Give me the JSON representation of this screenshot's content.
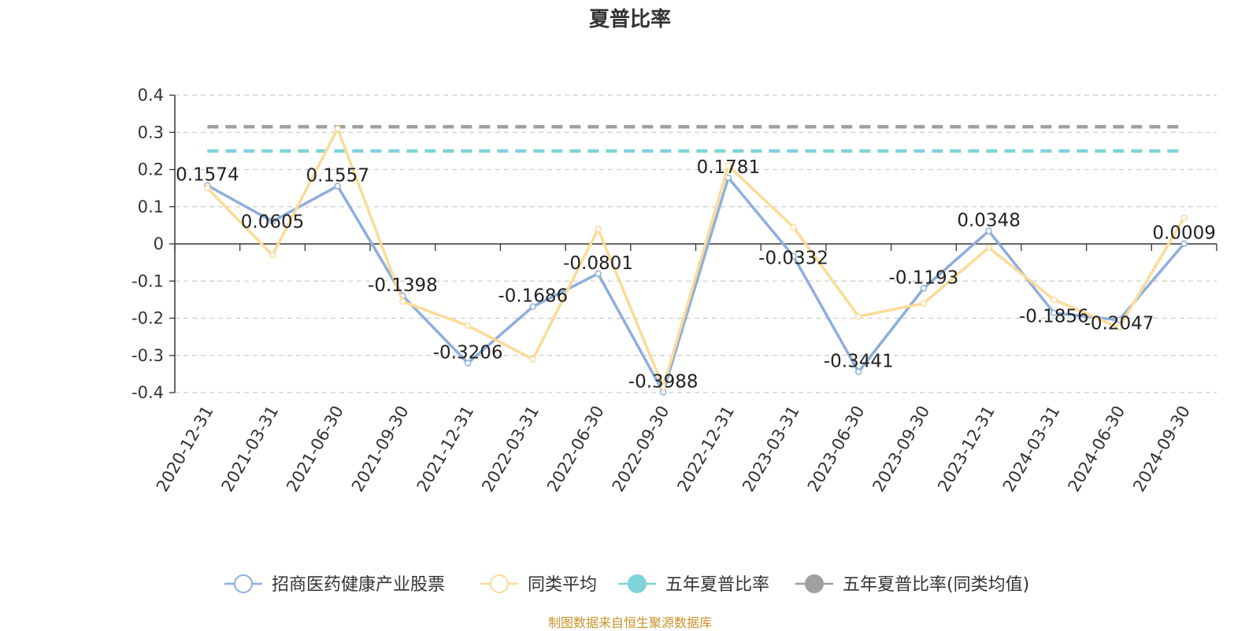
{
  "chart_data": {
    "type": "line",
    "title": "夏普比率",
    "source": "制图数据来自恒生聚源数据库",
    "categories": [
      "2020-12-31",
      "2021-03-31",
      "2021-06-30",
      "2021-09-30",
      "2021-12-31",
      "2022-03-31",
      "2022-06-30",
      "2022-09-30",
      "2022-12-31",
      "2023-03-31",
      "2023-06-30",
      "2023-09-30",
      "2023-12-31",
      "2024-03-31",
      "2024-06-30",
      "2024-09-30"
    ],
    "ylim": [
      -0.4,
      0.4
    ],
    "yticks": [
      "0.4",
      "0.3",
      "0.2",
      "0.1",
      "0",
      "-0.1",
      "-0.2",
      "-0.3",
      "-0.4"
    ],
    "grid": true,
    "legend_position": "bottom",
    "series": [
      {
        "name": "招商医药健康产业股票",
        "color": "#8eaedb",
        "values": [
          0.1574,
          0.0605,
          0.1557,
          -0.1398,
          -0.3206,
          -0.1686,
          -0.0801,
          -0.3988,
          0.1781,
          -0.0332,
          -0.3441,
          -0.1193,
          0.0348,
          -0.1856,
          -0.2047,
          0.0009
        ],
        "labels": [
          "0.1574",
          "0.0605",
          "0.1557",
          "-0.1398",
          "-0.3206",
          "-0.1686",
          "-0.0801",
          "-0.3988",
          "0.1781",
          "-0.0332",
          "-0.3441",
          "-0.1193",
          "0.0348",
          "-0.1856",
          "-0.2047",
          "0.0009"
        ]
      },
      {
        "name": "同类平均",
        "color": "#fbdb98",
        "values": [
          0.15,
          -0.03,
          0.31,
          -0.155,
          -0.22,
          -0.31,
          0.04,
          -0.385,
          0.21,
          0.045,
          -0.195,
          -0.16,
          -0.01,
          -0.15,
          -0.225,
          0.07
        ]
      },
      {
        "name": "五年夏普比率",
        "color": "#7fd4d8",
        "value": 0.25
      },
      {
        "name": "五年夏普比率(同类均值)",
        "color": "#a0a0a0",
        "value": 0.315
      }
    ]
  }
}
